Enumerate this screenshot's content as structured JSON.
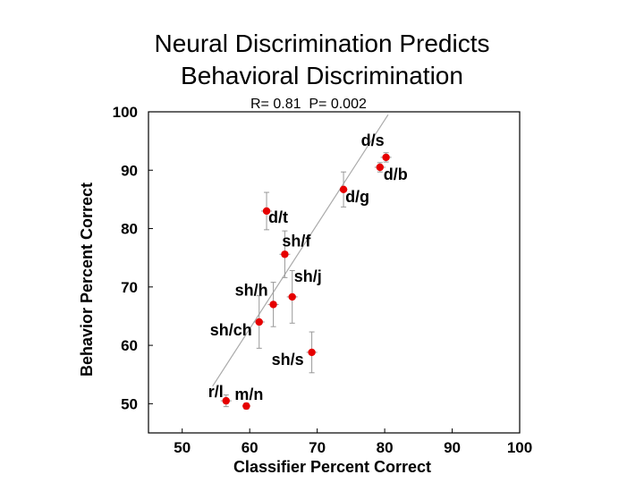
{
  "chart_data": {
    "type": "scatter",
    "title_line1": "Neural Discrimination Predicts",
    "title_line2": "Behavioral Discrimination",
    "stats_r": "R= 0.81",
    "stats_p": "P= 0.002",
    "xlabel": "Classifier Percent Correct",
    "ylabel": "Behavior Percent Correct",
    "xlim": [
      45,
      100
    ],
    "ylim": [
      45,
      100
    ],
    "xticks": [
      "50",
      "60",
      "70",
      "80",
      "90",
      "100"
    ],
    "yticks": [
      "50",
      "60",
      "70",
      "80",
      "90",
      "100"
    ],
    "point_color": "#e60000",
    "errorbar_color": "#999999",
    "fit_color": "#aaaaaa",
    "fit_line": {
      "x": [
        54.5,
        80.5
      ],
      "y": [
        53,
        99.5
      ]
    },
    "points": [
      {
        "label": "d/s",
        "x": 80.2,
        "y": 92.2,
        "xerr": 0.8,
        "yerr": 0.8
      },
      {
        "label": "d/b",
        "x": 79.3,
        "y": 90.5,
        "xerr": 0.8,
        "yerr": 0.8
      },
      {
        "label": "d/g",
        "x": 73.9,
        "y": 86.7,
        "xerr": 0.6,
        "yerr": 3.0
      },
      {
        "label": "d/t",
        "x": 62.5,
        "y": 83.0,
        "xerr": 0.8,
        "yerr": 3.2
      },
      {
        "label": "sh/f",
        "x": 65.2,
        "y": 75.6,
        "xerr": 0.8,
        "yerr": 4.0
      },
      {
        "label": "sh/j",
        "x": 66.3,
        "y": 68.3,
        "xerr": 0.8,
        "yerr": 4.5
      },
      {
        "label": "sh/h",
        "x": 63.5,
        "y": 67.0,
        "xerr": 0.8,
        "yerr": 3.8
      },
      {
        "label": "sh/ch",
        "x": 61.4,
        "y": 64.0,
        "xerr": 0.8,
        "yerr": 4.5
      },
      {
        "label": "sh/s",
        "x": 69.2,
        "y": 58.8,
        "xerr": 0.8,
        "yerr": 3.5
      },
      {
        "label": "r/l",
        "x": 56.5,
        "y": 50.5,
        "xerr": 0.8,
        "yerr": 1.0
      },
      {
        "label": "m/n",
        "x": 59.5,
        "y": 49.6,
        "xerr": 0.6,
        "yerr": 0.5
      }
    ]
  }
}
